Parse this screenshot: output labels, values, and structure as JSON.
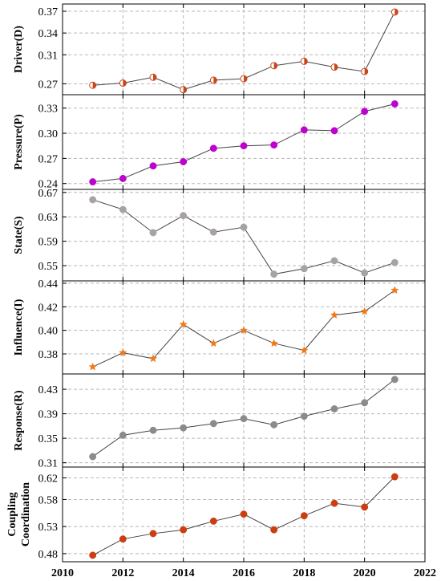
{
  "chart_data": {
    "type": "line",
    "x_axis": {
      "ticks": [
        2010,
        2012,
        2014,
        2016,
        2018,
        2020,
        2022
      ],
      "range": [
        2010,
        2022
      ]
    },
    "x": [
      2011,
      2012,
      2013,
      2014,
      2015,
      2016,
      2017,
      2018,
      2019,
      2020,
      2021
    ],
    "grid": true,
    "panels": [
      {
        "id": "driver",
        "ylabel": "Driver(D)",
        "ylim": [
          0.255,
          0.38
        ],
        "yticks": [
          0.27,
          0.31,
          0.34,
          0.37
        ],
        "ytick_labels": [
          "0.27",
          "0.31",
          "0.34",
          "0.37"
        ],
        "marker": "half-circle",
        "color": "#c8461a",
        "values": [
          0.268,
          0.271,
          0.279,
          0.262,
          0.275,
          0.277,
          0.295,
          0.301,
          0.293,
          0.287,
          0.369
        ]
      },
      {
        "id": "pressure",
        "ylabel": "Pressure(P)",
        "ylim": [
          0.233,
          0.346
        ],
        "yticks": [
          0.24,
          0.27,
          0.3,
          0.33
        ],
        "ytick_labels": [
          "0.24",
          "0.27",
          "0.30",
          "0.33"
        ],
        "marker": "circle",
        "color": "#c000d0",
        "values": [
          0.242,
          0.246,
          0.261,
          0.266,
          0.282,
          0.285,
          0.286,
          0.304,
          0.303,
          0.326,
          0.335
        ]
      },
      {
        "id": "state",
        "ylabel": "State(S)",
        "ylim": [
          0.525,
          0.675
        ],
        "yticks": [
          0.55,
          0.59,
          0.63,
          0.67
        ],
        "ytick_labels": [
          "0.55",
          "0.59",
          "0.63",
          "0.67"
        ],
        "marker": "circle",
        "color": "#a8a2a8",
        "values": [
          0.658,
          0.642,
          0.604,
          0.632,
          0.605,
          0.613,
          0.536,
          0.545,
          0.558,
          0.538,
          0.555
        ]
      },
      {
        "id": "influence",
        "ylabel": "Influence(I)",
        "ylim": [
          0.363,
          0.442
        ],
        "yticks": [
          0.38,
          0.4,
          0.42,
          0.44
        ],
        "ytick_labels": [
          "0.38",
          "0.40",
          "0.42",
          "0.44"
        ],
        "marker": "star",
        "color": "#f07a1a",
        "values": [
          0.369,
          0.381,
          0.376,
          0.405,
          0.389,
          0.4,
          0.389,
          0.383,
          0.413,
          0.416,
          0.434
        ]
      },
      {
        "id": "response",
        "ylabel": "Response(R)",
        "ylim": [
          0.303,
          0.455
        ],
        "yticks": [
          0.31,
          0.35,
          0.39,
          0.43
        ],
        "ytick_labels": [
          "0.31",
          "0.35",
          "0.39",
          "0.43"
        ],
        "marker": "circle",
        "color": "#8a8a90",
        "values": [
          0.32,
          0.355,
          0.363,
          0.367,
          0.374,
          0.382,
          0.372,
          0.386,
          0.398,
          0.408,
          0.446
        ]
      },
      {
        "id": "coupling",
        "ylabel": "Coupling Coordination",
        "ylabel_lines": [
          "Coupling",
          "Coordination"
        ],
        "ylim": [
          0.465,
          0.64
        ],
        "yticks": [
          0.48,
          0.53,
          0.58,
          0.62
        ],
        "ytick_labels": [
          "0.48",
          "0.53",
          "0.58",
          "0.62"
        ],
        "marker": "circle",
        "color": "#cc3d10",
        "values": [
          0.477,
          0.507,
          0.517,
          0.524,
          0.54,
          0.553,
          0.524,
          0.55,
          0.573,
          0.566,
          0.622
        ]
      }
    ]
  }
}
